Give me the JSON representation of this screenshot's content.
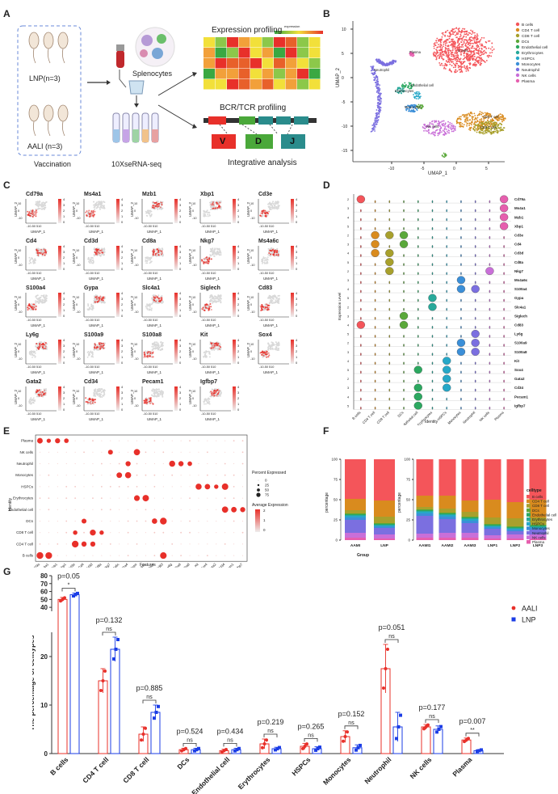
{
  "panels": {
    "a": "A",
    "b": "B",
    "c": "C",
    "d": "D",
    "e": "E",
    "f": "F",
    "g": "G"
  },
  "panel_a": {
    "group1": "LNP(n=3)",
    "group2": "AALI (n=3)",
    "vaccination": "Vaccination",
    "splenocytes": "Splenocytes",
    "seq": "10XseRNA-seq",
    "expr_title": "Expression profiling",
    "expr_legend": "expression",
    "bcr_title": "BCR/TCR profiling",
    "v": "V",
    "d": "D",
    "j": "J",
    "integrative": "Integrative analysis"
  },
  "panel_b": {
    "xlabel": "UMAP_1",
    "ylabel": "UMAP_2",
    "xticks": [
      "-10",
      "-5",
      "0",
      "5"
    ],
    "yticks": [
      "10",
      "5",
      "0",
      "-5",
      "-10",
      "-15"
    ],
    "clusters": [
      {
        "name": "B cells",
        "color": "#f4555a"
      },
      {
        "name": "CD4 T cell",
        "color": "#d98b1e"
      },
      {
        "name": "CD8 T cell",
        "color": "#a8a02c"
      },
      {
        "name": "DCs",
        "color": "#5aa83a"
      },
      {
        "name": "Endothelial cell",
        "color": "#2ca860"
      },
      {
        "name": "Erythrocytes",
        "color": "#27a99a"
      },
      {
        "name": "HSPCs",
        "color": "#26a8c8"
      },
      {
        "name": "Monocytes",
        "color": "#3b8fd8"
      },
      {
        "name": "Neutrophil",
        "color": "#7b6fe0"
      },
      {
        "name": "NK cells",
        "color": "#c96fd8"
      },
      {
        "name": "Plasma",
        "color": "#e65fae"
      }
    ],
    "cluster_labels": [
      "B cells",
      "Plasma",
      "Neutrophil",
      "Endothelial cell",
      "Erythrocytes",
      "Monocytes",
      "CD4 T cell",
      "CD8 T cell",
      "NK cells"
    ]
  },
  "panel_c": {
    "genes": [
      "Cd79a",
      "Ms4a1",
      "Mzb1",
      "Xbp1",
      "Cd3e",
      "Cd4",
      "Cd3d",
      "Cd8a",
      "Nkg7",
      "Ms4a6c",
      "S100a4",
      "Gypa",
      "Slc4a1",
      "Siglech",
      "Cd83",
      "Ly6g",
      "S100a9",
      "S100a8",
      "Kit",
      "Sox4",
      "Gata2",
      "Cd34",
      "Pecam1",
      "Igfbp7"
    ],
    "xlabel": "UMAP_1",
    "ylabel": "UMAP_2",
    "xticks": "-10-50 510",
    "yticks": [
      "10",
      "0",
      "-10"
    ],
    "scale": [
      "4",
      "3",
      "2",
      "1",
      "0"
    ]
  },
  "panel_d": {
    "ylabel": "Expression Level",
    "xlabel": "Identity",
    "genes": [
      "Cd79a",
      "Ms4a1",
      "Mzb1",
      "Xbp1",
      "Cd3e",
      "Cd4",
      "Cd3d",
      "Cd8a",
      "Nkg7",
      "Ms4a6c",
      "S100a4",
      "Gypa",
      "Slc4a1",
      "Siglech",
      "Cd83",
      "Ly6g",
      "S100a9",
      "S100a8",
      "Kit",
      "Sox4",
      "Gata2",
      "Cd34",
      "Pecam1",
      "Igfbp7"
    ],
    "identities": [
      "B cells",
      "CD4 T cell",
      "CD8 T cell",
      "DCs",
      "Endothelial cell",
      "Erythrocytes",
      "HSPCs",
      "Monocytes",
      "Neutrophil",
      "NK cells",
      "Plasma"
    ]
  },
  "panel_e": {
    "xlabel": "Features",
    "ylabel": "Identity",
    "rows": [
      "Plasma",
      "NK cells",
      "Neutrophil",
      "Monocytes",
      "HSPCs",
      "Erythrocytes",
      "Endothelial cell",
      "DCs",
      "CD8 T cell",
      "CD4 T cell",
      "B cells"
    ],
    "features": [
      "Cd79a",
      "Ms4a1",
      "Mzb1",
      "Xbp1",
      "Cd3e",
      "Cd4",
      "Cd3d",
      "Cd8a",
      "Nkg7",
      "Ms4a6c",
      "S100a4",
      "Gypa",
      "Slc4a1",
      "Siglech",
      "Cd83",
      "Ly6g",
      "S100a9",
      "S100a8",
      "Kit",
      "Sox4",
      "Gata2",
      "Cd34",
      "Pecam1",
      "Igfbp7"
    ],
    "legend_pct_title": "Percent Expressed",
    "legend_pct": [
      "0",
      "25",
      "50",
      "75"
    ],
    "legend_avg_title": "Average Expression",
    "legend_avg": [
      "2",
      "1",
      "0"
    ]
  },
  "chart_data": [
    {
      "type": "bar",
      "panel": "F-left",
      "xlabel": "Group",
      "ylabel": "percentage",
      "ylim": [
        0,
        100
      ],
      "yticks": [
        "0",
        "25",
        "50",
        "75",
        "100"
      ],
      "categories": [
        "AAMI",
        "LNP"
      ],
      "series": [
        {
          "name": "Plasma",
          "values": [
            3,
            2
          ]
        },
        {
          "name": "NK cells",
          "values": [
            6,
            5
          ]
        },
        {
          "name": "Neutrophil",
          "values": [
            16,
            8
          ]
        },
        {
          "name": "Monocytes",
          "values": [
            3,
            2
          ]
        },
        {
          "name": "HSPCs",
          "values": [
            2,
            1
          ]
        },
        {
          "name": "Erythrocytes",
          "values": [
            1,
            1
          ]
        },
        {
          "name": "Endothelial cell",
          "values": [
            1,
            1
          ]
        },
        {
          "name": "DCs",
          "values": [
            1,
            1
          ]
        },
        {
          "name": "CD8 T cell",
          "values": [
            4,
            8
          ]
        },
        {
          "name": "CD4 T cell",
          "values": [
            14,
            20
          ]
        },
        {
          "name": "B cells",
          "values": [
            49,
            51
          ]
        }
      ]
    },
    {
      "type": "bar",
      "panel": "F-right",
      "ylabel": "percentage",
      "ylim": [
        0,
        100
      ],
      "yticks": [
        "0",
        "25",
        "50",
        "75",
        "100"
      ],
      "categories": [
        "AAMI1",
        "AAMI2",
        "AAMI3",
        "LNP1",
        "LNP2",
        "LNP3"
      ],
      "legend_title": "celltype",
      "series": [
        {
          "name": "Plasma",
          "values": [
            3,
            3,
            3,
            2,
            2,
            2
          ]
        },
        {
          "name": "NK cells",
          "values": [
            5,
            6,
            6,
            4,
            5,
            5
          ]
        },
        {
          "name": "Neutrophil",
          "values": [
            22,
            17,
            12,
            8,
            4,
            6
          ]
        },
        {
          "name": "Monocytes",
          "values": [
            3,
            3,
            3,
            2,
            2,
            2
          ]
        },
        {
          "name": "HSPCs",
          "values": [
            2,
            2,
            2,
            1,
            1,
            1
          ]
        },
        {
          "name": "Erythrocytes",
          "values": [
            1,
            1,
            1,
            1,
            1,
            1
          ]
        },
        {
          "name": "Endothelial cell",
          "values": [
            1,
            1,
            1,
            1,
            1,
            1
          ]
        },
        {
          "name": "DCs",
          "values": [
            1,
            1,
            1,
            1,
            1,
            1
          ]
        },
        {
          "name": "CD8 T cell",
          "values": [
            3,
            5,
            6,
            8,
            10,
            9
          ]
        },
        {
          "name": "CD4 T cell",
          "values": [
            14,
            16,
            14,
            22,
            20,
            22
          ]
        },
        {
          "name": "B cells",
          "values": [
            45,
            45,
            51,
            50,
            53,
            50
          ]
        }
      ]
    },
    {
      "type": "bar",
      "panel": "G",
      "ylabel": "The percentage of celltypes",
      "yticks_low": [
        "0",
        "10",
        "20"
      ],
      "yticks_high": [
        "40",
        "50",
        "60",
        "70",
        "80"
      ],
      "categories": [
        "B cells",
        "CD4 T cell",
        "CD8 T cell",
        "DCs",
        "Endothelial cell",
        "Erythrocytes",
        "HSPCs",
        "Monocytes",
        "Neutrophil",
        "NK cells",
        "Plasma"
      ],
      "series": [
        {
          "name": "AALI",
          "color": "#e8302a",
          "values": [
            50,
            15,
            4,
            0.8,
            0.6,
            2,
            1.5,
            3.5,
            17.5,
            5.5,
            2.8
          ],
          "err": [
            2.5,
            2.5,
            1.5,
            0.3,
            0.3,
            1.0,
            0.6,
            1.2,
            5.0,
            0.5,
            0.4
          ]
        },
        {
          "name": "LNP",
          "color": "#1b3de6",
          "values": [
            56,
            21.5,
            8.5,
            0.8,
            0.8,
            1.0,
            1.0,
            1.2,
            5.5,
            5.0,
            0.6
          ],
          "err": [
            2.0,
            2.5,
            1.5,
            0.3,
            0.3,
            0.3,
            0.4,
            0.6,
            3.0,
            0.7,
            0.2
          ]
        }
      ],
      "pvalues": [
        "p=0.05",
        "p=0.132",
        "p=0.885",
        "p=0.524",
        "p=0.434",
        "p=0.219",
        "p=0.265",
        "p=0.152",
        "p=0.051",
        "p=0.177",
        "p=0.007"
      ],
      "sig": [
        "*",
        "ns",
        "ns",
        "ns",
        "ns",
        "ns",
        "ns",
        "ns",
        "ns",
        "ns",
        "**"
      ]
    }
  ]
}
